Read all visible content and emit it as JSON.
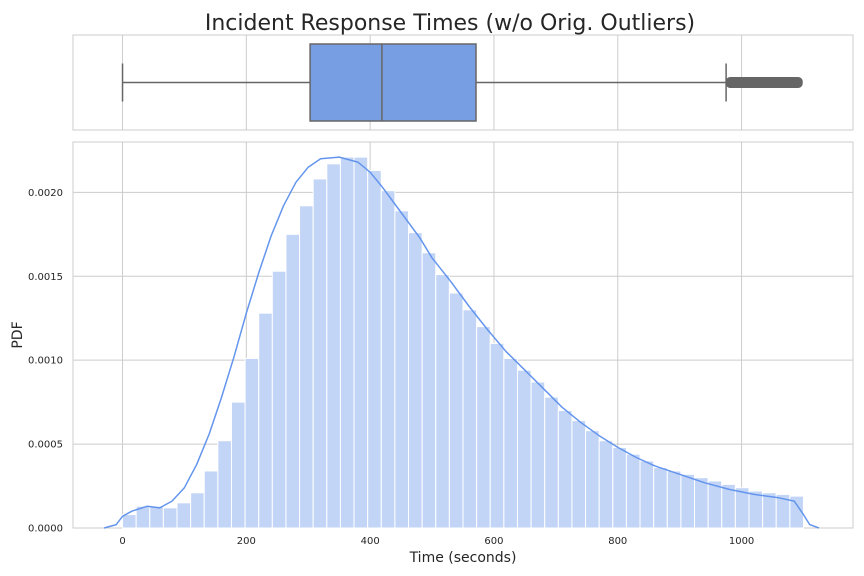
{
  "chart_data": [
    {
      "type": "box",
      "title": "Incident Response Times (w/o Orig. Outliers)",
      "whisker_low": 0,
      "q1": 303,
      "median": 419,
      "q3": 571,
      "whisker_high": 975,
      "outlier_range": [
        975,
        1098
      ],
      "xlim": [
        -80,
        1180
      ],
      "x_ticks": [
        0,
        200,
        400,
        600,
        800,
        1000
      ],
      "grid": true,
      "colors": {
        "box": "#779ee2",
        "edge": "#666666"
      }
    },
    {
      "type": "histogram",
      "xlabel": "Time (seconds)",
      "ylabel": "PDF",
      "xlim": [
        -80,
        1180
      ],
      "ylim": [
        0,
        0.0023
      ],
      "bin_start": 0,
      "bin_width": 22,
      "values": [
        8e-05,
        0.00013,
        0.00013,
        0.00012,
        0.00015,
        0.00021,
        0.00034,
        0.00052,
        0.00075,
        0.00101,
        0.00128,
        0.00153,
        0.00175,
        0.00192,
        0.00208,
        0.00217,
        0.00221,
        0.00221,
        0.00213,
        0.00201,
        0.00189,
        0.00176,
        0.00164,
        0.00151,
        0.0014,
        0.0013,
        0.0012,
        0.0011,
        0.00101,
        0.00094,
        0.00087,
        0.00078,
        0.0007,
        0.00064,
        0.00058,
        0.00052,
        0.00048,
        0.00044,
        0.0004,
        0.00036,
        0.00034,
        0.00032,
        0.0003,
        0.00028,
        0.00026,
        0.00024,
        0.00022,
        0.00021,
        0.0002,
        0.00019
      ],
      "kde": [
        [
          -30,
          0
        ],
        [
          -10,
          2e-05
        ],
        [
          0,
          7e-05
        ],
        [
          15,
          0.0001
        ],
        [
          40,
          0.00013
        ],
        [
          60,
          0.00012
        ],
        [
          80,
          0.00016
        ],
        [
          100,
          0.00024
        ],
        [
          120,
          0.00038
        ],
        [
          140,
          0.00056
        ],
        [
          160,
          0.00078
        ],
        [
          180,
          0.00102
        ],
        [
          200,
          0.00128
        ],
        [
          220,
          0.00152
        ],
        [
          240,
          0.00174
        ],
        [
          260,
          0.00192
        ],
        [
          280,
          0.00206
        ],
        [
          300,
          0.00215
        ],
        [
          320,
          0.0022
        ],
        [
          350,
          0.00221
        ],
        [
          380,
          0.00218
        ],
        [
          400,
          0.00212
        ],
        [
          420,
          0.00203
        ],
        [
          450,
          0.00188
        ],
        [
          480,
          0.00173
        ],
        [
          500,
          0.00161
        ],
        [
          530,
          0.00147
        ],
        [
          560,
          0.00132
        ],
        [
          590,
          0.00118
        ],
        [
          620,
          0.00105
        ],
        [
          650,
          0.00094
        ],
        [
          680,
          0.00083
        ],
        [
          710,
          0.00072
        ],
        [
          740,
          0.00063
        ],
        [
          770,
          0.00055
        ],
        [
          800,
          0.00048
        ],
        [
          830,
          0.00042
        ],
        [
          860,
          0.00037
        ],
        [
          900,
          0.00032
        ],
        [
          940,
          0.00027
        ],
        [
          980,
          0.00023
        ],
        [
          1020,
          0.0002
        ],
        [
          1060,
          0.00018
        ],
        [
          1085,
          0.00016
        ],
        [
          1100,
          8e-05
        ],
        [
          1110,
          2e-05
        ],
        [
          1125,
          0
        ]
      ],
      "y_ticks": [
        0,
        0.0005,
        0.001,
        0.0015,
        0.002
      ],
      "y_tick_labels": [
        "0.0000",
        "0.0005",
        "0.0010",
        "0.0015",
        "0.0020"
      ],
      "x_ticks": [
        0,
        200,
        400,
        600,
        800,
        1000
      ],
      "grid": true,
      "colors": {
        "bar": "#c3d5f6",
        "kde": "#6495ed"
      }
    }
  ]
}
